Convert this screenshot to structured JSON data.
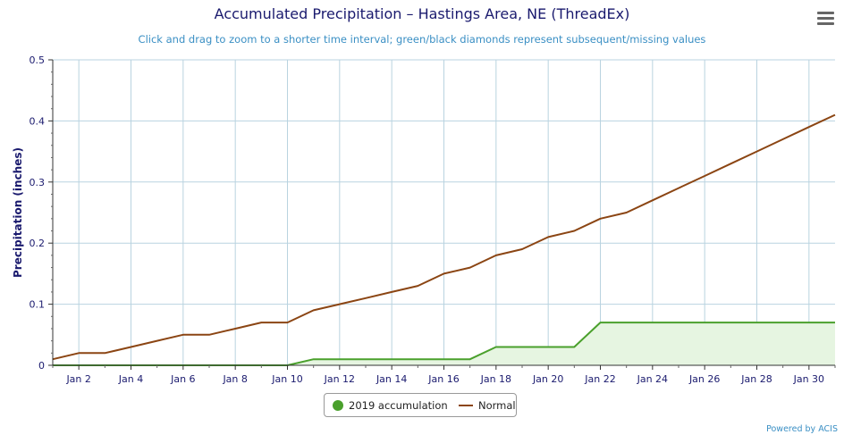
{
  "chart_data": {
    "type": "line",
    "title": "Accumulated Precipitation – Hastings Area, NE (ThreadEx)",
    "subtitle": "Click and drag to zoom to a shorter time interval; green/black diamonds represent subsequent/missing values",
    "xlabel": "",
    "ylabel": "Precipitation (inches)",
    "ylim": [
      0,
      0.5
    ],
    "xlim": [
      1,
      31
    ],
    "y_ticks": [
      "0",
      "0.1",
      "0.2",
      "0.3",
      "0.4",
      "0.5"
    ],
    "x_ticks": [
      {
        "x": 2,
        "label": "Jan 2"
      },
      {
        "x": 4,
        "label": "Jan 4"
      },
      {
        "x": 6,
        "label": "Jan 6"
      },
      {
        "x": 8,
        "label": "Jan 8"
      },
      {
        "x": 10,
        "label": "Jan 10"
      },
      {
        "x": 12,
        "label": "Jan 12"
      },
      {
        "x": 14,
        "label": "Jan 14"
      },
      {
        "x": 16,
        "label": "Jan 16"
      },
      {
        "x": 18,
        "label": "Jan 18"
      },
      {
        "x": 20,
        "label": "Jan 20"
      },
      {
        "x": 22,
        "label": "Jan 22"
      },
      {
        "x": 24,
        "label": "Jan 24"
      },
      {
        "x": 26,
        "label": "Jan 26"
      },
      {
        "x": 28,
        "label": "Jan 28"
      },
      {
        "x": 30,
        "label": "Jan 30"
      }
    ],
    "x": [
      1,
      2,
      3,
      4,
      5,
      6,
      7,
      8,
      9,
      10,
      11,
      12,
      13,
      14,
      15,
      16,
      17,
      18,
      19,
      20,
      21,
      22,
      23,
      24,
      25,
      26,
      27,
      28,
      29,
      30,
      31
    ],
    "grid": true,
    "legend_position": "bottom-center",
    "series": [
      {
        "name": "2019 accumulation",
        "color": "#4aa02c",
        "fill": "#e6f5e1",
        "style": "area",
        "values": [
          0,
          0,
          0,
          0,
          0,
          0,
          0,
          0,
          0,
          0,
          0.01,
          0.01,
          0.01,
          0.01,
          0.01,
          0.01,
          0.01,
          0.03,
          0.03,
          0.03,
          0.03,
          0.07,
          0.07,
          0.07,
          0.07,
          0.07,
          0.07,
          0.07,
          0.07,
          0.07,
          0.07
        ]
      },
      {
        "name": "Normal",
        "color": "#8b4513",
        "style": "line",
        "values": [
          0.01,
          0.02,
          0.02,
          0.03,
          0.04,
          0.05,
          0.05,
          0.06,
          0.07,
          0.07,
          0.09,
          0.1,
          0.11,
          0.12,
          0.13,
          0.15,
          0.16,
          0.18,
          0.19,
          0.21,
          0.22,
          0.24,
          0.25,
          0.27,
          0.29,
          0.31,
          0.33,
          0.35,
          0.37,
          0.39,
          0.41
        ]
      }
    ]
  },
  "credits": "Powered by ACIS",
  "menu_icon": "hamburger-menu-icon"
}
